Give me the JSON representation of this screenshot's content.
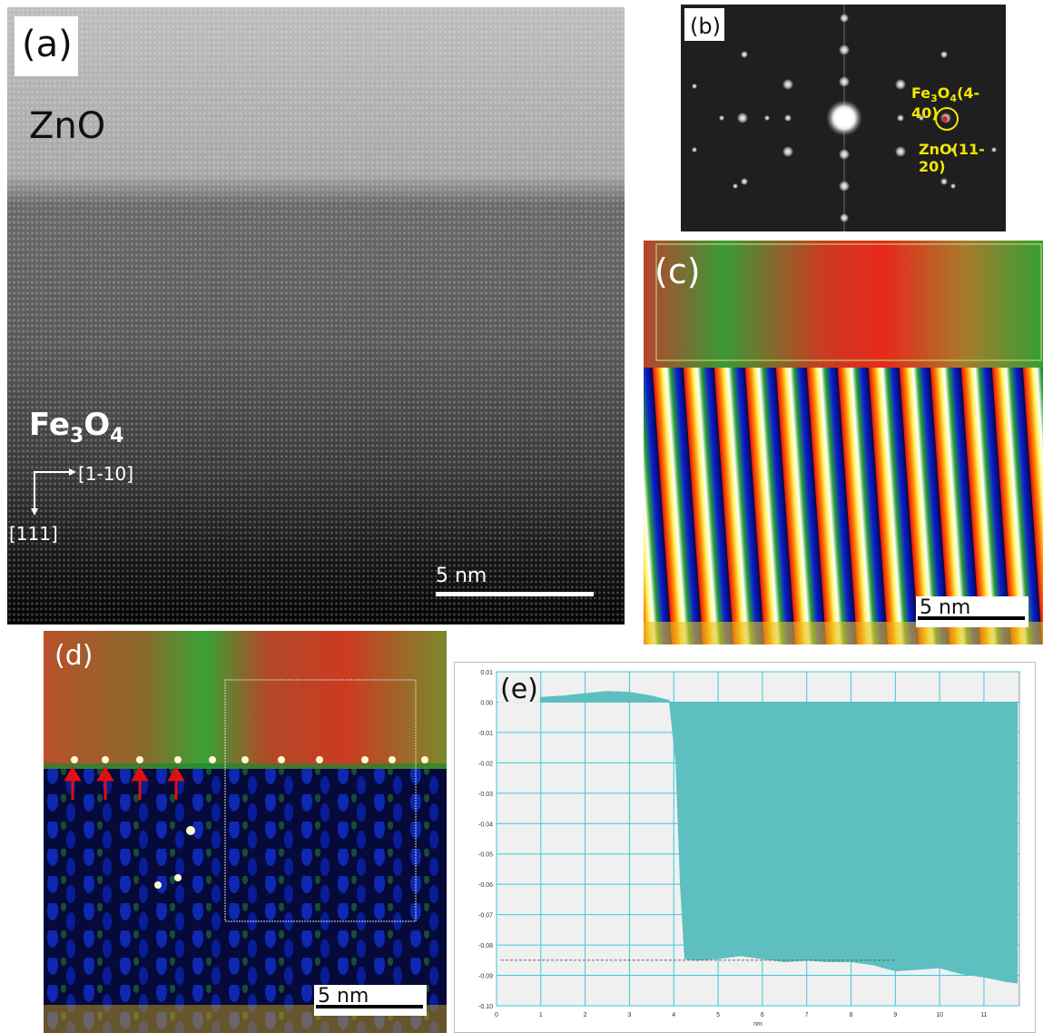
{
  "panels": {
    "a": {
      "label": "(a)",
      "top_material": "ZnO",
      "bottom_material": {
        "base": "Fe",
        "sub1": "3",
        "mid": "O",
        "sub2": "4"
      },
      "direction_x": "[1-10]",
      "direction_y": "[111]",
      "scalebar": "5 nm"
    },
    "b": {
      "label": "(b)",
      "spot_label_top": {
        "base": "Fe",
        "sub1": "3",
        "mid": "O",
        "sub2": "4",
        "tail": "(4-40)"
      },
      "spot_label_bottom": "ZnO(11-20)",
      "accent_color": "#f2e600"
    },
    "c": {
      "label": "(c)",
      "scalebar": "5 nm"
    },
    "d": {
      "label": "(d)",
      "scalebar": "5 nm",
      "arrow_color": "#e01010"
    },
    "e": {
      "label": "(e)"
    }
  },
  "chart_data": {
    "type": "area",
    "title": "",
    "xlabel": "nm",
    "ylabel": "",
    "xlim": [
      0,
      11.8
    ],
    "ylim": [
      -0.1,
      0.01
    ],
    "xticks": [
      "0",
      "1",
      "2",
      "3",
      "4",
      "5",
      "6",
      "7",
      "8",
      "9",
      "10",
      "11"
    ],
    "yticks": [
      "0.01",
      "0.00",
      "-0.01",
      "-0.02",
      "-0.03",
      "-0.04",
      "-0.05",
      "-0.06",
      "-0.07",
      "-0.08",
      "-0.09",
      "-0.10"
    ],
    "grid": true,
    "fill_color": "#5dbfbf",
    "x": [
      0.95,
      1.5,
      2.0,
      2.5,
      3.0,
      3.5,
      3.9,
      4.05,
      4.15,
      4.25,
      4.5,
      5.0,
      5.5,
      6.0,
      6.5,
      7.0,
      7.5,
      8.0,
      8.5,
      9.0,
      9.5,
      10.0,
      10.5,
      11.0,
      11.5,
      11.75
    ],
    "values": [
      0.0015,
      0.002,
      0.0028,
      0.0035,
      0.0032,
      0.002,
      0.0005,
      -0.02,
      -0.06,
      -0.0845,
      -0.085,
      -0.0845,
      -0.0835,
      -0.0845,
      -0.0855,
      -0.085,
      -0.0855,
      -0.0855,
      -0.0865,
      -0.0885,
      -0.088,
      -0.0875,
      -0.0895,
      -0.0905,
      -0.092,
      -0.0925
    ],
    "reference_line": {
      "y": -0.085,
      "x_start": 0.1,
      "x_end": 9.0
    }
  }
}
